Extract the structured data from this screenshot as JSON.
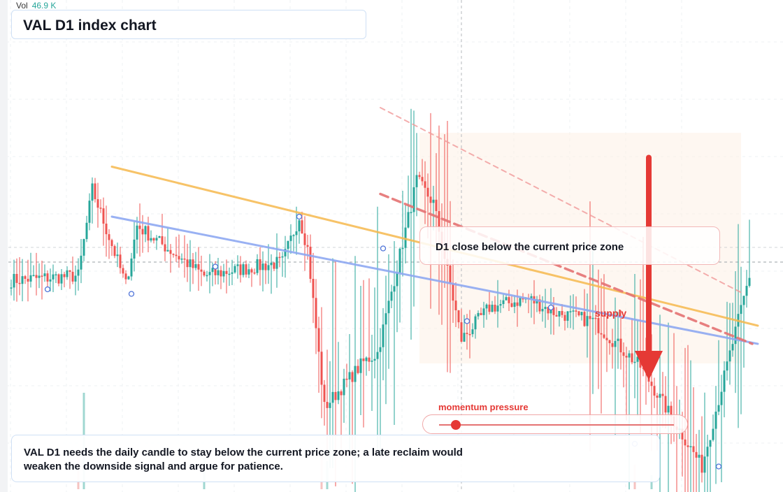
{
  "header": {
    "volume_label": "Vol",
    "volume_value": "46.9 K"
  },
  "title": "VAL D1 index chart",
  "callout": "D1 close below the current price zone",
  "zone_label": "supply",
  "momentum": {
    "label": "momentum pressure",
    "level": 0.07
  },
  "note": "VAL D1 needs the daily candle to stay below the current price zone; a late reclaim would weaken the downside signal and argue for patience.",
  "colors": {
    "up": "#26a69a",
    "down": "#ef5350",
    "signal": "#e53935",
    "trend_upper": "#f6b94e",
    "trend_lower": "#8fa9f2"
  },
  "chart_data": {
    "type": "candlestick",
    "title": "VAL D1 index chart",
    "x_axis": "daily bars (1 to 265)",
    "y_range": [
      0,
      100
    ],
    "current_price": 50,
    "series": [
      {
        "name": "price",
        "ohlc_segments": [
          {
            "bars": [
              1,
              25
            ],
            "start": 46,
            "end": 47
          },
          {
            "bars": [
              25,
              30
            ],
            "start": 47,
            "end": 66
          },
          {
            "bars": [
              30,
              42
            ],
            "start": 66,
            "end": 45
          },
          {
            "bars": [
              42,
              46
            ],
            "start": 45,
            "end": 58
          },
          {
            "bars": [
              46,
              70
            ],
            "start": 58,
            "end": 47
          },
          {
            "bars": [
              70,
              98
            ],
            "start": 47,
            "end": 50
          },
          {
            "bars": [
              98,
              104
            ],
            "start": 50,
            "end": 60
          },
          {
            "bars": [
              104,
              107
            ],
            "start": 60,
            "end": 53
          },
          {
            "bars": [
              107,
              113
            ],
            "start": 53,
            "end": 18
          },
          {
            "bars": [
              113,
              127
            ],
            "start": 18,
            "end": 28
          },
          {
            "bars": [
              127,
              132
            ],
            "start": 28,
            "end": 30
          },
          {
            "bars": [
              132,
              142
            ],
            "start": 30,
            "end": 57
          },
          {
            "bars": [
              142,
              146
            ],
            "start": 57,
            "end": 68
          },
          {
            "bars": [
              146,
              152
            ],
            "start": 68,
            "end": 63
          },
          {
            "bars": [
              152,
              162
            ],
            "start": 63,
            "end": 33
          },
          {
            "bars": [
              162,
              172
            ],
            "start": 33,
            "end": 40
          },
          {
            "bars": [
              172,
              186
            ],
            "start": 40,
            "end": 42
          },
          {
            "bars": [
              186,
              195
            ],
            "start": 42,
            "end": 39
          },
          {
            "bars": [
              195,
              209
            ],
            "start": 39,
            "end": 37
          },
          {
            "bars": [
              209,
              226
            ],
            "start": 37,
            "end": 27
          },
          {
            "bars": [
              226,
              248
            ],
            "start": 27,
            "end": 5
          },
          {
            "bars": [
              248,
              265
            ],
            "start": 5,
            "end": 47
          }
        ]
      },
      {
        "name": "volume",
        "peak": 46.9
      }
    ],
    "overlays": {
      "trend_upper": {
        "from": [
          37,
          71
        ],
        "to": [
          268,
          36
        ]
      },
      "trend_lower": {
        "from": [
          37,
          60
        ],
        "to": [
          268,
          32
        ]
      },
      "signal_trend": {
        "from": [
          133,
          65
        ],
        "to": [
          266,
          32
        ]
      },
      "dashed_upper": {
        "from": [
          133,
          84
        ],
        "to": [
          263,
          43
        ]
      },
      "current_price_zone": [
        50,
        55
      ],
      "arrow": {
        "bar": 229,
        "from": 73,
        "to": 24
      },
      "cursor_bar": 162,
      "markers": [
        {
          "bar": 14,
          "price": 44
        },
        {
          "bar": 44,
          "price": 43
        },
        {
          "bar": 74,
          "price": 49
        },
        {
          "bar": 104,
          "price": 60
        },
        {
          "bar": 134,
          "price": 53
        },
        {
          "bar": 164,
          "price": 37
        },
        {
          "bar": 194,
          "price": 40
        },
        {
          "bar": 224,
          "price": 10
        },
        {
          "bar": 254,
          "price": 5
        }
      ]
    }
  }
}
